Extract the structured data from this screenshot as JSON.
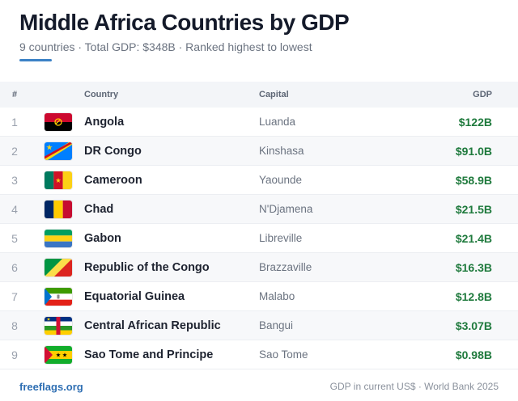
{
  "header": {
    "title": "Middle Africa Countries by GDP",
    "subtitle": "9 countries · Total GDP: $348B · Ranked highest to lowest"
  },
  "table": {
    "columns": {
      "rank": "#",
      "country": "Country",
      "capital": "Capital",
      "gdp": "GDP"
    },
    "rows": [
      {
        "rank": "1",
        "country": "Angola",
        "capital": "Luanda",
        "gdp": "$122B",
        "flag_icon": "angola-flag-icon"
      },
      {
        "rank": "2",
        "country": "DR Congo",
        "capital": "Kinshasa",
        "gdp": "$91.0B",
        "flag_icon": "dr-congo-flag-icon"
      },
      {
        "rank": "3",
        "country": "Cameroon",
        "capital": "Yaounde",
        "gdp": "$58.9B",
        "flag_icon": "cameroon-flag-icon"
      },
      {
        "rank": "4",
        "country": "Chad",
        "capital": "N'Djamena",
        "gdp": "$21.5B",
        "flag_icon": "chad-flag-icon"
      },
      {
        "rank": "5",
        "country": "Gabon",
        "capital": "Libreville",
        "gdp": "$21.4B",
        "flag_icon": "gabon-flag-icon"
      },
      {
        "rank": "6",
        "country": "Republic of the Congo",
        "capital": "Brazzaville",
        "gdp": "$16.3B",
        "flag_icon": "republic-of-the-congo-flag-icon"
      },
      {
        "rank": "7",
        "country": "Equatorial Guinea",
        "capital": "Malabo",
        "gdp": "$12.8B",
        "flag_icon": "equatorial-guinea-flag-icon"
      },
      {
        "rank": "8",
        "country": "Central African Republic",
        "capital": "Bangui",
        "gdp": "$3.07B",
        "flag_icon": "central-african-republic-flag-icon"
      },
      {
        "rank": "9",
        "country": "Sao Tome and Principe",
        "capital": "Sao Tome",
        "gdp": "$0.98B",
        "flag_icon": "sao-tome-and-principe-flag-icon"
      }
    ]
  },
  "footer": {
    "brand": "freeflags.org",
    "source": "GDP in current US$ · World Bank 2025"
  },
  "colors": {
    "accent": "#3b82c6",
    "gdp_text": "#1f7a3d",
    "brand": "#2f6fb3"
  }
}
